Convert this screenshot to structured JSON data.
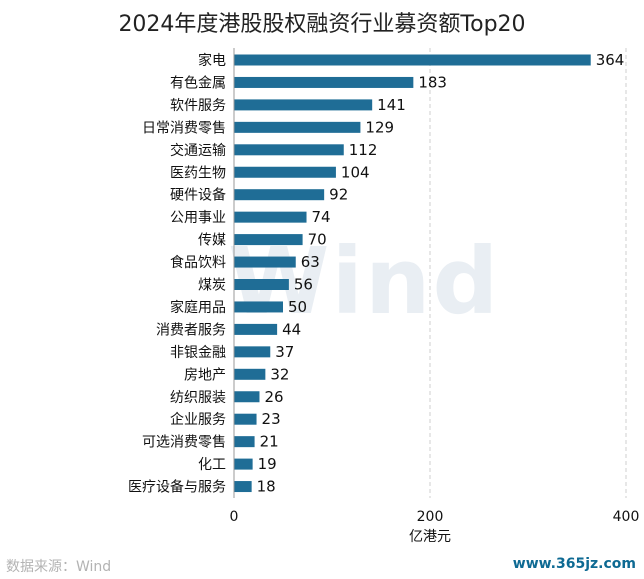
{
  "chart_data": {
    "type": "bar",
    "orientation": "horizontal",
    "title": "2024年度港股股权融资行业募资额Top20",
    "xlabel": "亿港元",
    "ylabel": "",
    "xlim": [
      0,
      400
    ],
    "xticks": [
      0,
      200,
      400
    ],
    "grid": "vertical-dashed",
    "bar_color": "#1f6d96",
    "categories": [
      "家电",
      "有色金属",
      "软件服务",
      "日常消费零售",
      "交通运输",
      "医药生物",
      "硬件设备",
      "公用事业",
      "传媒",
      "食品饮料",
      "煤炭",
      "家庭用品",
      "消费者服务",
      "非银金融",
      "房地产",
      "纺织服装",
      "企业服务",
      "可选消费零售",
      "化工",
      "医疗设备与服务"
    ],
    "values": [
      364,
      183,
      141,
      129,
      112,
      104,
      92,
      74,
      70,
      63,
      56,
      50,
      44,
      37,
      32,
      26,
      23,
      21,
      19,
      18
    ]
  },
  "watermark": "Wind",
  "footer": {
    "source": "数据来源：Wind",
    "site": "www.365jz.com"
  }
}
